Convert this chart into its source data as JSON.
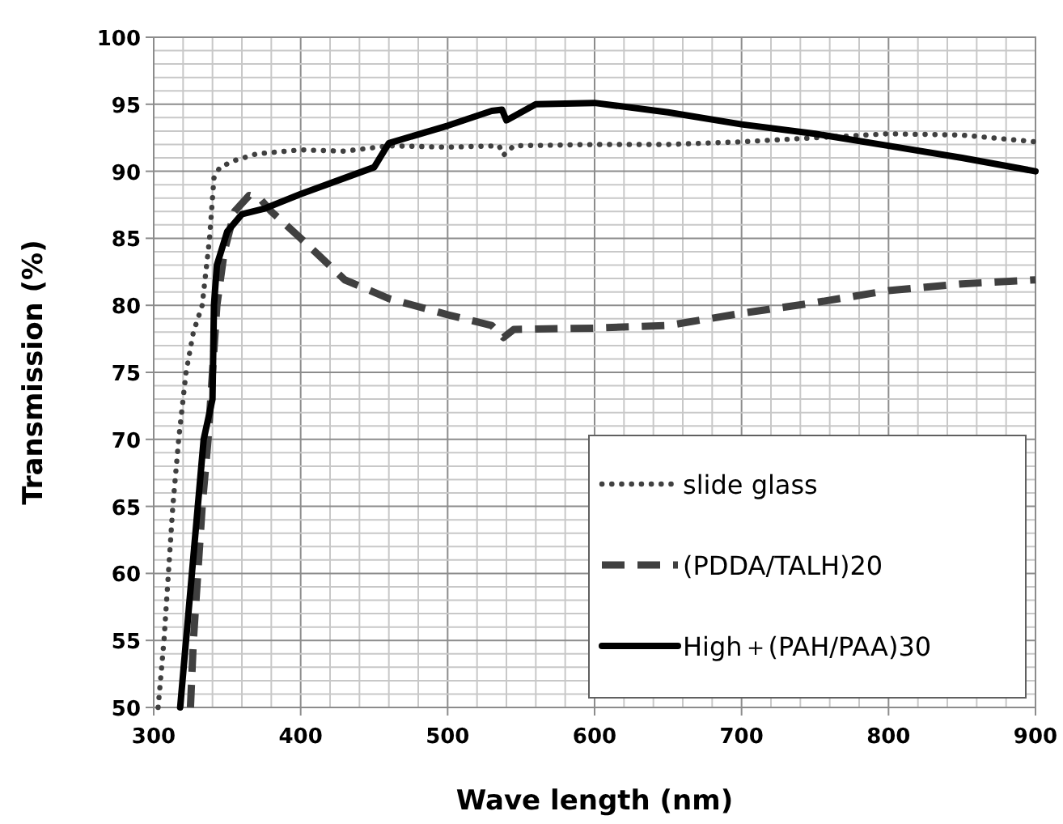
{
  "chart_data": {
    "type": "line",
    "xlabel": "Wave length (nm)",
    "ylabel": "Transmission (%)",
    "xlim": [
      300,
      900
    ],
    "xticks": [
      300,
      400,
      500,
      600,
      700,
      800,
      900
    ],
    "ylim": [
      50,
      100
    ],
    "yticks": [
      50,
      55,
      60,
      65,
      70,
      75,
      80,
      85,
      90,
      95,
      100
    ],
    "grid": true,
    "legend": "bottom right",
    "series": [
      {
        "name": "slide glass",
        "color": "#404040",
        "line_style": "dotted",
        "x": [
          303,
          307,
          310,
          313,
          317,
          322,
          327,
          333,
          338,
          341,
          345,
          355,
          370,
          400,
          430,
          460,
          500,
          535,
          538,
          545,
          600,
          650,
          700,
          750,
          800,
          850,
          900
        ],
        "values": [
          50,
          55,
          60,
          65,
          70,
          75,
          78,
          80,
          85,
          89.5,
          90.3,
          90.8,
          91.3,
          91.6,
          91.5,
          91.9,
          91.8,
          91.9,
          91.2,
          91.9,
          92.0,
          92.0,
          92.2,
          92.5,
          92.8,
          92.7,
          92.2
        ]
      },
      {
        "name": "(PDDA/TALH)20",
        "color": "#404040",
        "line_style": "dashed",
        "x": [
          325,
          327,
          330,
          333,
          337,
          340,
          343,
          348,
          355,
          365,
          372,
          380,
          400,
          430,
          460,
          500,
          530,
          538,
          545,
          600,
          650,
          700,
          750,
          800,
          850,
          900
        ],
        "values": [
          50,
          55,
          60,
          65,
          70,
          75,
          80,
          84,
          87,
          88.2,
          88.0,
          87.0,
          85.0,
          81.9,
          80.5,
          79.3,
          78.5,
          77.6,
          78.2,
          78.3,
          78.5,
          79.4,
          80.2,
          81.1,
          81.6,
          81.9
        ]
      },
      {
        "name": "High＋(PAH/PAA)30",
        "color": "#000000",
        "line_style": "solid",
        "x": [
          318,
          322,
          326,
          330,
          334,
          340,
          341,
          343,
          350,
          360,
          375,
          400,
          430,
          450,
          460,
          500,
          530,
          537,
          540,
          560,
          600,
          650,
          700,
          750,
          800,
          850,
          900
        ],
        "values": [
          50,
          55,
          60,
          65,
          70,
          73,
          80,
          83,
          85.5,
          86.8,
          87.2,
          88.3,
          89.5,
          90.3,
          92.1,
          93.4,
          94.5,
          94.6,
          93.8,
          95.0,
          95.1,
          94.4,
          93.5,
          92.8,
          91.9,
          91.0,
          90.0
        ]
      }
    ]
  }
}
